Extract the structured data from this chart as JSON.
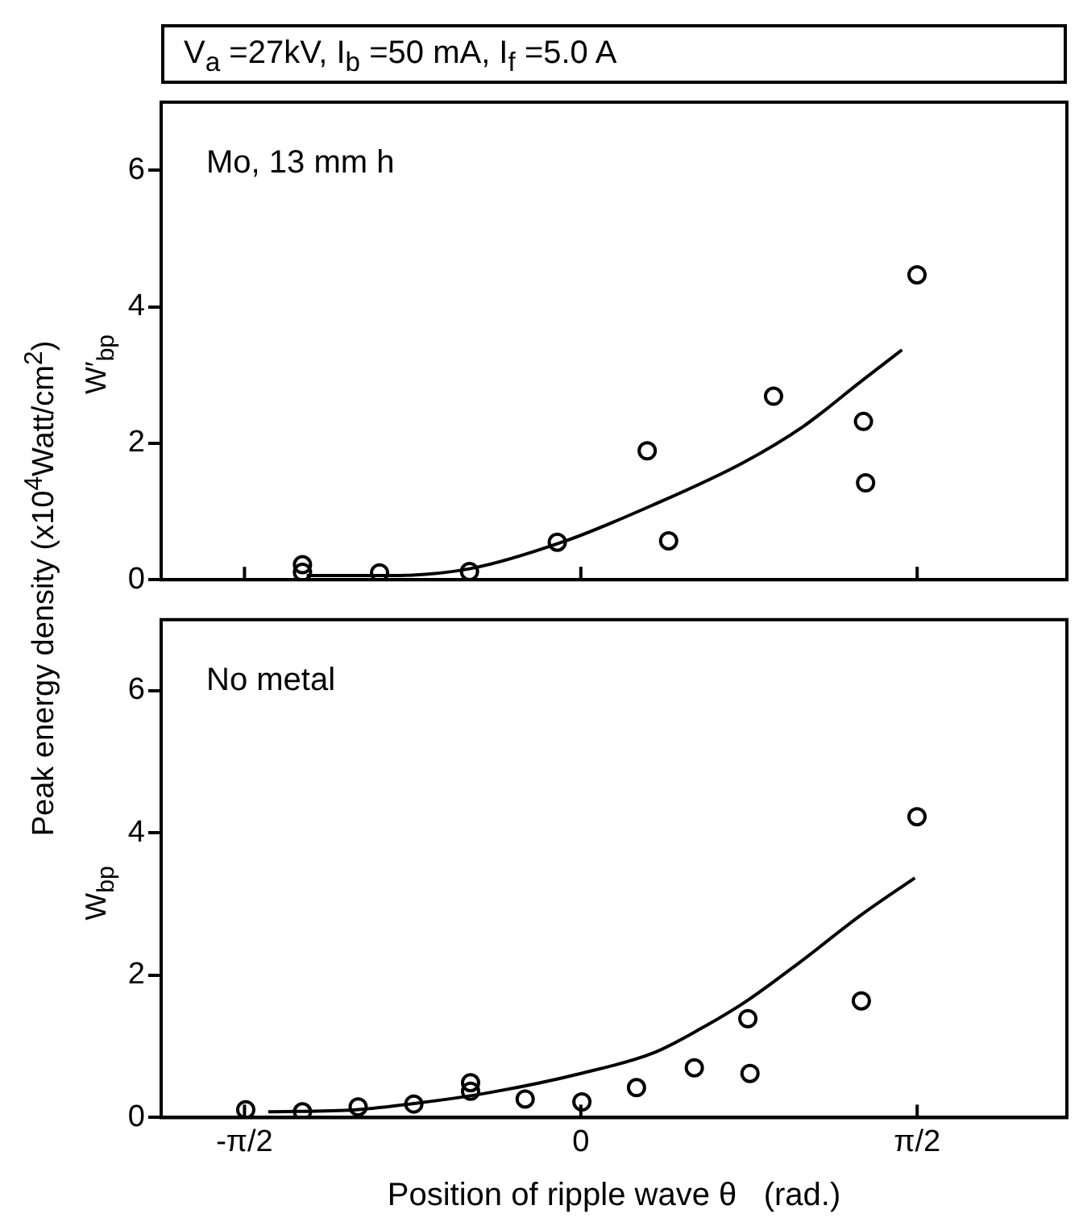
{
  "chart_data": [
    {
      "type": "scatter",
      "title": "V$_{a}$ =27kV, I$_{b}$ =50 mA, I$_{f}$ =5.0 A",
      "ylabel": "W′$_{bp}$",
      "annotations": [
        "Mo, 13 mm h"
      ],
      "xlim": [
        -1.96,
        2.27
      ],
      "xticks": [
        {
          "value": -1.5708,
          "label": null
        },
        {
          "value": 0,
          "label": null
        },
        {
          "value": 1.5708,
          "label": null
        }
      ],
      "ylim": [
        0,
        7
      ],
      "yticks": [
        0,
        2,
        4,
        6
      ],
      "tick_labels": "y",
      "grid": false,
      "legend": false,
      "series": [
        {
          "type": "scatter",
          "color": "#000000",
          "marker": "circle",
          "x": [
            -1.3,
            -1.3,
            -0.94,
            -0.52,
            -0.11,
            0.31,
            0.41,
            0.9,
            1.32,
            1.33,
            1.57
          ],
          "values": [
            0.22,
            0.11,
            0.1,
            0.12,
            0.55,
            1.89,
            0.57,
            2.69,
            2.32,
            1.42,
            4.47
          ]
        },
        {
          "type": "line",
          "color": "#000000",
          "marker": "none",
          "line_style": "solid",
          "x": [
            -1.28,
            -0.9,
            -0.52,
            -0.07,
            0.34,
            0.76,
            1.04,
            1.31,
            1.5
          ],
          "values": [
            0.06,
            0.06,
            0.16,
            0.57,
            1.1,
            1.72,
            2.25,
            2.91,
            3.37
          ]
        }
      ]
    },
    {
      "type": "scatter",
      "xlabel": "Position of ripple wave θ   (rad.)",
      "ylabel": "W$_{bp}$",
      "annotations": [
        "No metal",
        "Peak energy density (x10$^{4}$Watt/cm$^{2}$)"
      ],
      "xlim": [
        -1.96,
        2.27
      ],
      "xticks": [
        {
          "value": -1.5708,
          "label": "-π/2"
        },
        0,
        {
          "value": 1.5708,
          "label": "π/2"
        }
      ],
      "ylim": [
        0,
        7
      ],
      "yticks": [
        0,
        2,
        4,
        6
      ],
      "grid": false,
      "legend": false,
      "series": [
        {
          "type": "scatter",
          "color": "#000000",
          "marker": "circle",
          "x": [
            -1.565,
            -1.3,
            -1.04,
            -0.78,
            -0.515,
            -0.515,
            -0.26,
            0.005,
            0.26,
            0.53,
            0.78,
            0.79,
            1.31,
            1.57
          ],
          "values": [
            0.11,
            0.08,
            0.15,
            0.19,
            0.49,
            0.37,
            0.26,
            0.22,
            0.42,
            0.7,
            1.39,
            0.62,
            1.64,
            4.23
          ]
        },
        {
          "type": "line",
          "color": "#000000",
          "marker": "none",
          "line_style": "solid",
          "x": [
            -1.46,
            -1.05,
            -0.77,
            -0.41,
            0,
            0.34,
            0.56,
            0.78,
            1.03,
            1.31,
            1.56
          ],
          "values": [
            0.08,
            0.11,
            0.2,
            0.36,
            0.62,
            0.91,
            1.25,
            1.65,
            2.2,
            2.85,
            3.37
          ]
        }
      ]
    }
  ]
}
